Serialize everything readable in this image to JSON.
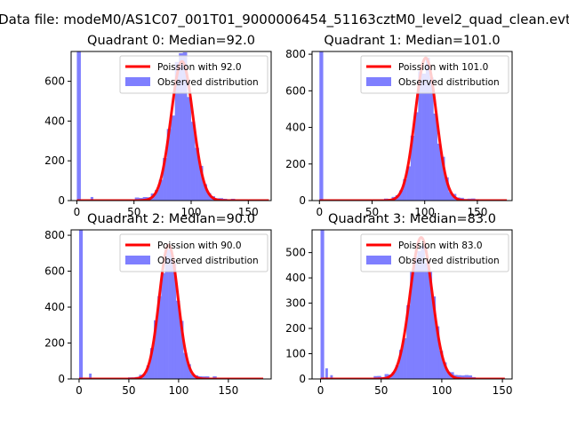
{
  "figure": {
    "title": "Data file: modeM0/AS1C07_001T01_9000006454_51163cztM0_level2_quad_clean.evt"
  },
  "colors": {
    "histogram": "#7f7fff",
    "poisson_line": "#ff0000",
    "axes": "#000000"
  },
  "chart_data": [
    {
      "type": "bar",
      "title": "Quadrant 0: Median=92.0",
      "median": 92.0,
      "xlim": [
        -5,
        170
      ],
      "ylim": [
        0,
        750
      ],
      "xticks": [
        0,
        50,
        100,
        150
      ],
      "yticks": [
        0,
        200,
        400,
        600
      ],
      "legend_placement": "upper right",
      "zero_bin_value": 750,
      "outlier_bins": [
        {
          "x": 12,
          "value": 18
        }
      ],
      "bin_width": 3.5,
      "data_max_x": 168,
      "noise_seed": 3,
      "series": [
        {
          "name": "Poission with 92.0",
          "type": "line",
          "lambda": 92.0,
          "peak": 700,
          "x_range": [
            0,
            168
          ]
        },
        {
          "name": "Observed distribution",
          "type": "histogram"
        }
      ]
    },
    {
      "type": "bar",
      "title": "Quadrant 1: Median=101.0",
      "median": 101.0,
      "xlim": [
        -7,
        183
      ],
      "ylim": [
        0,
        815
      ],
      "xticks": [
        0,
        50,
        100,
        150
      ],
      "yticks": [
        0,
        200,
        400,
        600,
        800
      ],
      "legend_placement": "upper right",
      "zero_bin_value": 815,
      "outlier_bins": [],
      "bin_width": 3.6,
      "data_max_x": 178,
      "noise_seed": 7,
      "series": [
        {
          "name": "Poission with 101.0",
          "type": "line",
          "lambda": 101.0,
          "peak": 780,
          "x_range": [
            0,
            178
          ]
        },
        {
          "name": "Observed distribution",
          "type": "histogram"
        }
      ]
    },
    {
      "type": "bar",
      "title": "Quadrant 2: Median=90.0",
      "median": 90.0,
      "xlim": [
        -8,
        193
      ],
      "ylim": [
        0,
        830
      ],
      "xticks": [
        0,
        50,
        100,
        150
      ],
      "yticks": [
        0,
        200,
        400,
        600,
        800
      ],
      "legend_placement": "upper right",
      "zero_bin_value": 830,
      "outlier_bins": [
        {
          "x": 10,
          "value": 30
        }
      ],
      "bin_width": 3.7,
      "data_max_x": 185,
      "noise_seed": 11,
      "series": [
        {
          "name": "Poission with 90.0",
          "type": "line",
          "lambda": 90.0,
          "peak": 745,
          "x_range": [
            0,
            185
          ]
        },
        {
          "name": "Observed distribution",
          "type": "histogram"
        }
      ]
    },
    {
      "type": "bar",
      "title": "Quadrant 3: Median=83.0",
      "median": 83.0,
      "xlim": [
        -7,
        158
      ],
      "ylim": [
        0,
        590
      ],
      "xticks": [
        0,
        50,
        100,
        150
      ],
      "yticks": [
        0,
        100,
        200,
        300,
        400,
        500
      ],
      "legend_placement": "upper right",
      "zero_bin_value": 590,
      "outlier_bins": [
        {
          "x": 4,
          "value": 42
        },
        {
          "x": 8,
          "value": 15
        }
      ],
      "bin_width": 3.0,
      "data_max_x": 152,
      "noise_seed": 5,
      "series": [
        {
          "name": "Poission with 83.0",
          "type": "line",
          "lambda": 83.0,
          "peak": 560,
          "x_range": [
            0,
            152
          ]
        },
        {
          "name": "Observed distribution",
          "type": "histogram"
        }
      ]
    }
  ]
}
